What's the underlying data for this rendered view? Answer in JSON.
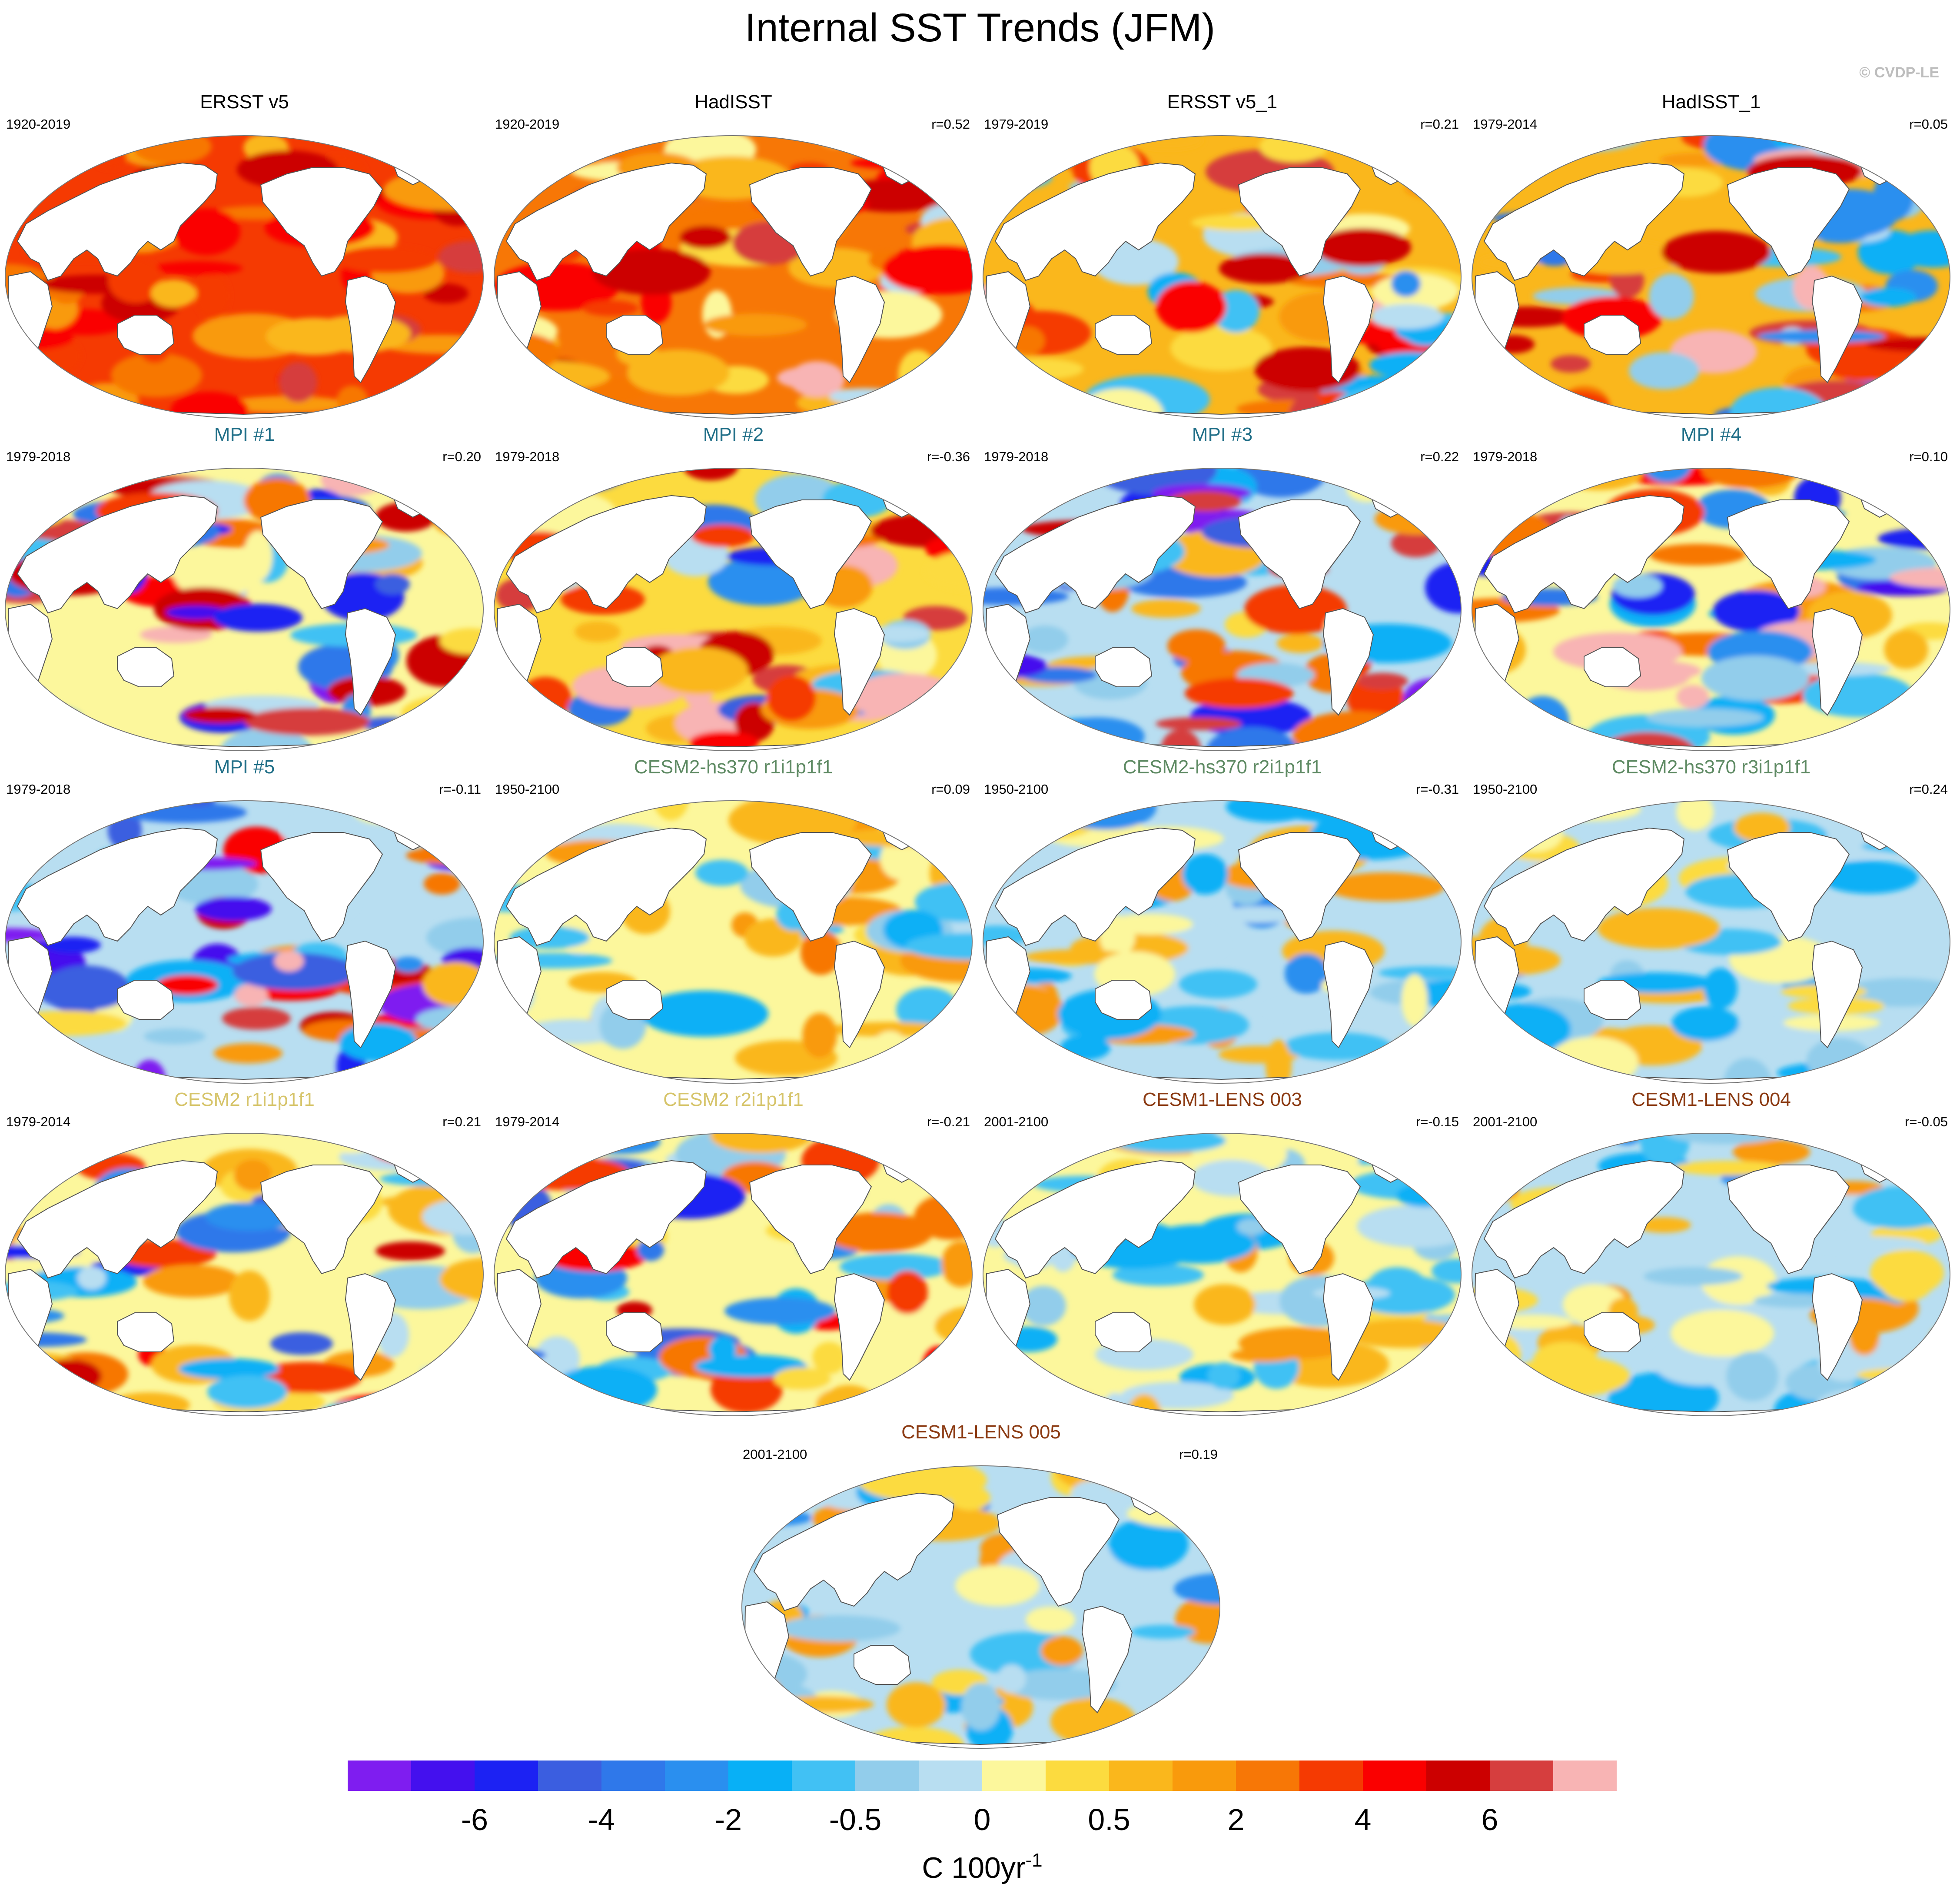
{
  "figure": {
    "title": "Internal SST Trends (JFM)",
    "credit": "© CVDP-LE",
    "units_label": "C 100yr",
    "units_exponent": "-1"
  },
  "colors": {
    "land": "#ffffff",
    "coast": "#555555",
    "colorbar": [
      "#7f1df0",
      "#4410ee",
      "#1c22f3",
      "#3b5ee0",
      "#2f78ea",
      "#2a8fef",
      "#08b0f6",
      "#41c1f4",
      "#92cdeb",
      "#b8def1",
      "#fcf79c",
      "#fcdb3f",
      "#fab71c",
      "#f99a0c",
      "#f77706",
      "#f53a02",
      "#fa0000",
      "#cc0000",
      "#d63e3e",
      "#f8b4b4"
    ]
  },
  "chart_data": {
    "type": "heatmap",
    "projection": "Robinson (Pacific-centered)",
    "variable": "Internal SST trends, JFM",
    "units": "C 100yr^-1",
    "colorbar": {
      "levels": [
        -8,
        -6,
        -5,
        -4,
        -3,
        -2,
        -1,
        -0.5,
        -0.25,
        0,
        0.25,
        0.5,
        1,
        2,
        3,
        4,
        5,
        6,
        8
      ],
      "tick_labels": [
        "-6",
        "-4",
        "-2",
        "-0.5",
        "0",
        "0.5",
        "2",
        "4",
        "6"
      ]
    },
    "panels": [
      {
        "title": "ERSST v5",
        "period": "1920-2019",
        "r": "",
        "title_color": "#000000",
        "tone": 0.55,
        "spread": 0.15
      },
      {
        "title": "HadISST",
        "period": "1920-2019",
        "r": "r=0.52",
        "title_color": "#000000",
        "tone": 0.45,
        "spread": 0.25
      },
      {
        "title": "ERSST v5_1",
        "period": "1979-2019",
        "r": "r=0.21",
        "title_color": "#000000",
        "tone": 0.3,
        "spread": 0.35
      },
      {
        "title": "HadISST_1",
        "period": "1979-2014",
        "r": "r=0.05",
        "title_color": "#000000",
        "tone": 0.25,
        "spread": 0.4
      },
      {
        "title": "MPI #1",
        "period": "1979-2018",
        "r": "r=0.20",
        "title_color": "#1f6e87",
        "tone": 0.0,
        "spread": 0.45
      },
      {
        "title": "MPI #2",
        "period": "1979-2018",
        "r": "r=-0.36",
        "title_color": "#1f6e87",
        "tone": 0.15,
        "spread": 0.45
      },
      {
        "title": "MPI #3",
        "period": "1979-2018",
        "r": "r=0.22",
        "title_color": "#1f6e87",
        "tone": -0.05,
        "spread": 0.45
      },
      {
        "title": "MPI #4",
        "period": "1979-2018",
        "r": "r=0.10",
        "title_color": "#1f6e87",
        "tone": 0.1,
        "spread": 0.45
      },
      {
        "title": "MPI #5",
        "period": "1979-2018",
        "r": "r=-0.11",
        "title_color": "#1f6e87",
        "tone": -0.05,
        "spread": 0.5
      },
      {
        "title": "CESM2-hs370 r1i1p1f1",
        "period": "1950-2100",
        "r": "r=0.09",
        "title_color": "#5e8a63",
        "tone": 0.05,
        "spread": 0.2
      },
      {
        "title": "CESM2-hs370 r2i1p1f1",
        "period": "1950-2100",
        "r": "r=-0.31",
        "title_color": "#5e8a63",
        "tone": -0.03,
        "spread": 0.2
      },
      {
        "title": "CESM2-hs370 r3i1p1f1",
        "period": "1950-2100",
        "r": "r=0.24",
        "title_color": "#5e8a63",
        "tone": -0.08,
        "spread": 0.18
      },
      {
        "title": "CESM2 r1i1p1f1",
        "period": "1979-2014",
        "r": "r=0.21",
        "title_color": "#d6c46a",
        "tone": 0.0,
        "spread": 0.35
      },
      {
        "title": "CESM2 r2i1p1f1",
        "period": "1979-2014",
        "r": "r=-0.21",
        "title_color": "#d6c46a",
        "tone": 0.0,
        "spread": 0.35
      },
      {
        "title": "CESM1-LENS 003",
        "period": "2001-2100",
        "r": "r=-0.15",
        "title_color": "#8b3a12",
        "tone": 0.02,
        "spread": 0.2
      },
      {
        "title": "CESM1-LENS 004",
        "period": "2001-2100",
        "r": "r=-0.05",
        "title_color": "#8b3a12",
        "tone": -0.02,
        "spread": 0.2
      },
      {
        "title": "CESM1-LENS 005",
        "period": "2001-2100",
        "r": "r=0.19",
        "title_color": "#8b3a12",
        "tone": -0.02,
        "spread": 0.2
      }
    ]
  }
}
